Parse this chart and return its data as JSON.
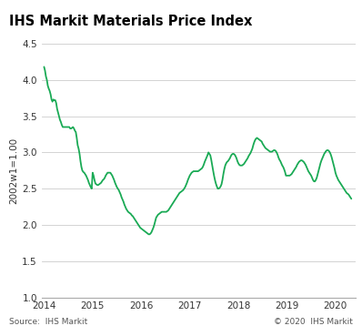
{
  "title": "IHS Markit Materials Price Index",
  "ylabel": "2002w1=1.00",
  "source_left": "Source:  IHS Markit",
  "source_right": "© 2020  IHS Markit",
  "ylim": [
    1.0,
    4.5
  ],
  "yticks": [
    1.0,
    1.5,
    2.0,
    2.5,
    3.0,
    3.5,
    4.0,
    4.5
  ],
  "line_color": "#1aaa55",
  "title_bg_color": "#a0a0a0",
  "bg_color": "#ffffff",
  "grid_color": "#cccccc",
  "x_values": [
    2014.0,
    2014.019,
    2014.038,
    2014.058,
    2014.077,
    2014.096,
    2014.115,
    2014.135,
    2014.154,
    2014.173,
    2014.192,
    2014.212,
    2014.231,
    2014.25,
    2014.269,
    2014.288,
    2014.308,
    2014.327,
    2014.346,
    2014.365,
    2014.385,
    2014.404,
    2014.423,
    2014.442,
    2014.462,
    2014.481,
    2014.5,
    2014.519,
    2014.538,
    2014.558,
    2014.577,
    2014.596,
    2014.615,
    2014.635,
    2014.654,
    2014.673,
    2014.692,
    2014.712,
    2014.731,
    2014.75,
    2014.769,
    2014.788,
    2014.808,
    2014.827,
    2014.846,
    2014.865,
    2014.885,
    2014.904,
    2014.923,
    2014.942,
    2014.962,
    2014.981,
    2015.0,
    2015.019,
    2015.038,
    2015.058,
    2015.077,
    2015.096,
    2015.115,
    2015.135,
    2015.154,
    2015.173,
    2015.192,
    2015.212,
    2015.231,
    2015.25,
    2015.269,
    2015.288,
    2015.308,
    2015.327,
    2015.346,
    2015.365,
    2015.385,
    2015.404,
    2015.423,
    2015.442,
    2015.462,
    2015.481,
    2015.5,
    2015.519,
    2015.538,
    2015.558,
    2015.577,
    2015.596,
    2015.615,
    2015.635,
    2015.654,
    2015.673,
    2015.692,
    2015.712,
    2015.731,
    2015.75,
    2015.769,
    2015.788,
    2015.808,
    2015.827,
    2015.846,
    2015.865,
    2015.885,
    2015.904,
    2015.923,
    2015.942,
    2015.962,
    2015.981,
    2016.0,
    2016.019,
    2016.038,
    2016.058,
    2016.077,
    2016.096,
    2016.115,
    2016.135,
    2016.154,
    2016.173,
    2016.192,
    2016.212,
    2016.231,
    2016.25,
    2016.269,
    2016.288,
    2016.308,
    2016.327,
    2016.346,
    2016.365,
    2016.385,
    2016.404,
    2016.423,
    2016.442,
    2016.462,
    2016.481,
    2016.5,
    2016.519,
    2016.538,
    2016.558,
    2016.577,
    2016.596,
    2016.615,
    2016.635,
    2016.654,
    2016.673,
    2016.692,
    2016.712,
    2016.731,
    2016.75,
    2016.769,
    2016.788,
    2016.808,
    2016.827,
    2016.846,
    2016.865,
    2016.885,
    2016.904,
    2016.923,
    2016.942,
    2016.962,
    2016.981,
    2017.0,
    2017.019,
    2017.038,
    2017.058,
    2017.077,
    2017.096,
    2017.115,
    2017.135,
    2017.154,
    2017.173,
    2017.192,
    2017.212,
    2017.231,
    2017.25,
    2017.269,
    2017.288,
    2017.308,
    2017.327,
    2017.346,
    2017.365,
    2017.385,
    2017.404,
    2017.423,
    2017.442,
    2017.462,
    2017.481,
    2017.5,
    2017.519,
    2017.538,
    2017.558,
    2017.577,
    2017.596,
    2017.615,
    2017.635,
    2017.654,
    2017.673,
    2017.692,
    2017.712,
    2017.731,
    2017.75,
    2017.769,
    2017.788,
    2017.808,
    2017.827,
    2017.846,
    2017.865,
    2017.885,
    2017.904,
    2017.923,
    2017.942,
    2017.962,
    2017.981,
    2018.0,
    2018.019,
    2018.038,
    2018.058,
    2018.077,
    2018.096,
    2018.115,
    2018.135,
    2018.154,
    2018.173,
    2018.192,
    2018.212,
    2018.231,
    2018.25,
    2018.269,
    2018.288,
    2018.308,
    2018.327,
    2018.346,
    2018.365,
    2018.385,
    2018.404,
    2018.423,
    2018.442,
    2018.462,
    2018.481,
    2018.5,
    2018.519,
    2018.538,
    2018.558,
    2018.577,
    2018.596,
    2018.615,
    2018.635,
    2018.654,
    2018.673,
    2018.692,
    2018.712,
    2018.731,
    2018.75,
    2018.769,
    2018.788,
    2018.808,
    2018.827,
    2018.846,
    2018.865,
    2018.885,
    2018.904,
    2018.923,
    2018.942,
    2018.962,
    2018.981,
    2019.0,
    2019.019,
    2019.038,
    2019.058,
    2019.077,
    2019.096,
    2019.115,
    2019.135,
    2019.154,
    2019.173,
    2019.192,
    2019.212,
    2019.231,
    2019.25,
    2019.269,
    2019.288,
    2019.308,
    2019.327,
    2019.346,
    2019.365,
    2019.385,
    2019.404,
    2019.423,
    2019.442,
    2019.462,
    2019.481,
    2019.5,
    2019.519,
    2019.538,
    2019.558,
    2019.577,
    2019.596,
    2019.615,
    2019.635,
    2019.654,
    2019.673,
    2019.692,
    2019.712,
    2019.731,
    2019.75,
    2019.769,
    2019.788,
    2019.808,
    2019.827,
    2019.846,
    2019.865,
    2019.885,
    2019.904,
    2019.923,
    2019.942,
    2019.962,
    2019.981,
    2020.0,
    2020.019,
    2020.038,
    2020.058,
    2020.077,
    2020.096,
    2020.115,
    2020.135,
    2020.154,
    2020.173,
    2020.192,
    2020.212,
    2020.231,
    2020.25,
    2020.269,
    2020.288,
    2020.308,
    2020.327
  ],
  "y_values": [
    4.18,
    4.13,
    4.05,
    4.0,
    3.92,
    3.88,
    3.85,
    3.8,
    3.73,
    3.7,
    3.73,
    3.72,
    3.72,
    3.68,
    3.6,
    3.55,
    3.5,
    3.45,
    3.42,
    3.38,
    3.35,
    3.35,
    3.35,
    3.35,
    3.35,
    3.35,
    3.35,
    3.35,
    3.33,
    3.33,
    3.34,
    3.35,
    3.33,
    3.3,
    3.28,
    3.2,
    3.1,
    3.05,
    2.98,
    2.88,
    2.8,
    2.75,
    2.73,
    2.72,
    2.7,
    2.68,
    2.65,
    2.62,
    2.58,
    2.55,
    2.52,
    2.5,
    2.72,
    2.68,
    2.62,
    2.57,
    2.56,
    2.55,
    2.55,
    2.56,
    2.57,
    2.58,
    2.6,
    2.62,
    2.63,
    2.65,
    2.68,
    2.7,
    2.72,
    2.72,
    2.72,
    2.72,
    2.7,
    2.68,
    2.65,
    2.62,
    2.58,
    2.55,
    2.52,
    2.5,
    2.48,
    2.45,
    2.42,
    2.38,
    2.35,
    2.32,
    2.28,
    2.25,
    2.22,
    2.2,
    2.18,
    2.17,
    2.16,
    2.15,
    2.13,
    2.12,
    2.1,
    2.08,
    2.06,
    2.04,
    2.02,
    2.0,
    1.98,
    1.96,
    1.95,
    1.94,
    1.93,
    1.92,
    1.91,
    1.9,
    1.89,
    1.88,
    1.87,
    1.87,
    1.88,
    1.9,
    1.93,
    1.96,
    2.0,
    2.05,
    2.1,
    2.12,
    2.14,
    2.15,
    2.16,
    2.17,
    2.18,
    2.18,
    2.18,
    2.18,
    2.18,
    2.18,
    2.19,
    2.2,
    2.22,
    2.24,
    2.26,
    2.28,
    2.3,
    2.32,
    2.34,
    2.36,
    2.38,
    2.4,
    2.42,
    2.44,
    2.45,
    2.46,
    2.47,
    2.48,
    2.5,
    2.52,
    2.55,
    2.58,
    2.62,
    2.65,
    2.68,
    2.7,
    2.72,
    2.73,
    2.74,
    2.74,
    2.74,
    2.74,
    2.74,
    2.74,
    2.75,
    2.76,
    2.77,
    2.78,
    2.8,
    2.83,
    2.87,
    2.9,
    2.93,
    2.96,
    3.0,
    2.98,
    2.96,
    2.9,
    2.82,
    2.75,
    2.68,
    2.62,
    2.57,
    2.53,
    2.5,
    2.5,
    2.51,
    2.53,
    2.56,
    2.62,
    2.7,
    2.77,
    2.82,
    2.85,
    2.87,
    2.88,
    2.9,
    2.92,
    2.95,
    2.97,
    2.98,
    2.98,
    2.97,
    2.95,
    2.92,
    2.88,
    2.85,
    2.83,
    2.82,
    2.82,
    2.82,
    2.83,
    2.84,
    2.86,
    2.88,
    2.9,
    2.92,
    2.95,
    2.97,
    2.99,
    3.02,
    3.05,
    3.1,
    3.14,
    3.17,
    3.19,
    3.2,
    3.19,
    3.18,
    3.17,
    3.16,
    3.15,
    3.12,
    3.1,
    3.08,
    3.06,
    3.05,
    3.04,
    3.03,
    3.02,
    3.01,
    3.01,
    3.01,
    3.02,
    3.03,
    3.03,
    3.02,
    3.0,
    2.97,
    2.93,
    2.9,
    2.88,
    2.85,
    2.82,
    2.8,
    2.77,
    2.73,
    2.68,
    2.68,
    2.68,
    2.68,
    2.68,
    2.69,
    2.7,
    2.72,
    2.74,
    2.76,
    2.78,
    2.8,
    2.83,
    2.85,
    2.87,
    2.88,
    2.89,
    2.89,
    2.88,
    2.87,
    2.85,
    2.83,
    2.8,
    2.77,
    2.74,
    2.72,
    2.7,
    2.68,
    2.65,
    2.62,
    2.6,
    2.6,
    2.62,
    2.65,
    2.7,
    2.75,
    2.8,
    2.85,
    2.89,
    2.92,
    2.95,
    2.98,
    3.0,
    3.02,
    3.03,
    3.03,
    3.02,
    3.0,
    2.97,
    2.93,
    2.88,
    2.83,
    2.78,
    2.72,
    2.68,
    2.65,
    2.62,
    2.6,
    2.58,
    2.56,
    2.54,
    2.52,
    2.5,
    2.48,
    2.46,
    2.44,
    2.43,
    2.42,
    2.4,
    2.38,
    2.36
  ],
  "xticks": [
    2014,
    2015,
    2016,
    2017,
    2018,
    2019,
    2020
  ],
  "xlim": [
    2013.95,
    2020.42
  ]
}
